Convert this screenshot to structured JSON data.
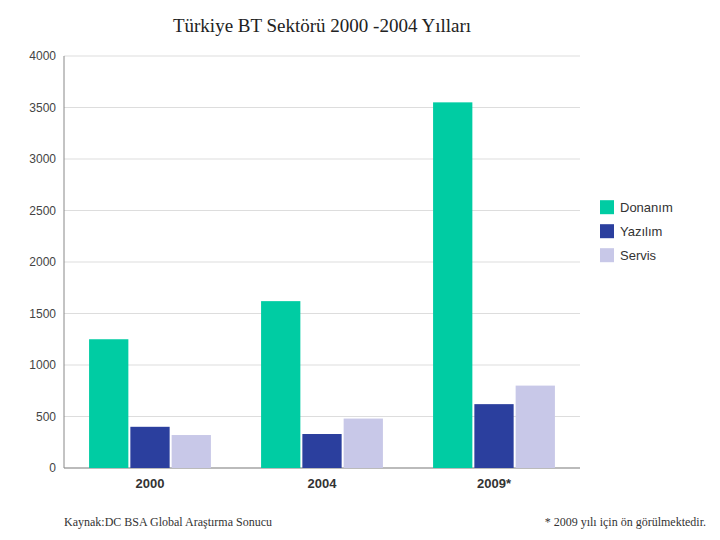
{
  "chart_data": {
    "type": "bar",
    "title": "Türkiye BT Sektörü 2000 -2004 Yılları",
    "categories": [
      "2000",
      "2004",
      "2009*"
    ],
    "series": [
      {
        "name": "Donanım",
        "color": "#00CCA3",
        "values": [
          1250,
          1620,
          3550
        ]
      },
      {
        "name": "Yazılım",
        "color": "#2B3F9E",
        "values": [
          400,
          330,
          620
        ]
      },
      {
        "name": "Servis",
        "color": "#C8C8E8",
        "values": [
          320,
          480,
          800
        ]
      }
    ],
    "ylim": [
      0,
      4000
    ],
    "yticks": [
      0,
      500,
      1000,
      1500,
      2000,
      2500,
      3000,
      3500,
      4000
    ],
    "grid": true,
    "legend": "right",
    "annotations": [
      "Kaynak:DC BSA Global Araştırma Sonucu",
      "* 2009 yılı için ön görülmektedir."
    ]
  }
}
